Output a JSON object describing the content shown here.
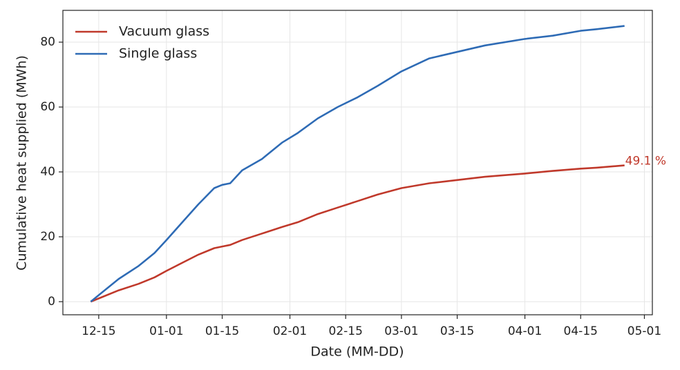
{
  "chart_data": {
    "type": "line",
    "x_label": "Date (MM-DD)",
    "y_label": "Cumulative heat supplied (MWh)",
    "x": [
      "12-13",
      "12-16",
      "12-20",
      "12-25",
      "12-29",
      "01-01",
      "01-05",
      "01-09",
      "01-13",
      "01-15",
      "01-17",
      "01-20",
      "01-25",
      "01-30",
      "02-03",
      "02-08",
      "02-13",
      "02-18",
      "02-23",
      "03-01",
      "03-08",
      "03-15",
      "03-22",
      "04-01",
      "04-08",
      "04-15",
      "04-19",
      "04-26"
    ],
    "series": [
      {
        "name": "Vacuum glass",
        "color": "#c0392b",
        "values": [
          0,
          1.5,
          3.5,
          5.5,
          7.5,
          9.5,
          12,
          14.5,
          16.5,
          17,
          17.5,
          19,
          21,
          23,
          24.5,
          27,
          29,
          31,
          33,
          35,
          36.5,
          37.5,
          38.5,
          39.5,
          40.3,
          41,
          41.3,
          42
        ]
      },
      {
        "name": "Single glass",
        "color": "#2e6bb5",
        "values": [
          0,
          3,
          7,
          11,
          15,
          19,
          24.5,
          30,
          35,
          36,
          36.5,
          40.5,
          44,
          49,
          52,
          56.5,
          60,
          63,
          66.5,
          71,
          75,
          77,
          79,
          81,
          82,
          83.5,
          84,
          85
        ]
      }
    ],
    "annotation": "49.1 %",
    "xlim": [
      "12-06",
      "05-03"
    ],
    "xticks": [
      "12-15",
      "01-01",
      "01-15",
      "02-01",
      "02-15",
      "03-01",
      "03-15",
      "04-01",
      "04-15",
      "05-01"
    ],
    "ylim": [
      -4.04,
      89.8
    ],
    "yticks": [
      0,
      20,
      40,
      60,
      80
    ],
    "grid": true,
    "legend": "upper left"
  }
}
